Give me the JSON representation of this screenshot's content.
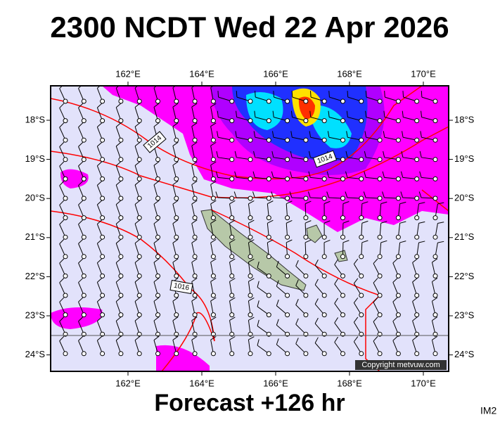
{
  "header": {
    "title": "2300 NCDT Wed 22 Apr 2026"
  },
  "map": {
    "lon_labels": [
      "162°E",
      "164°E",
      "166°E",
      "168°E",
      "170°E"
    ],
    "lat_labels": [
      "18°S",
      "19°S",
      "20°S",
      "21°S",
      "22°S",
      "23°S",
      "24°S"
    ],
    "isobar_labels": [
      "1014",
      "1014",
      "1016"
    ],
    "copyright": "Copyright metvuw.com"
  },
  "footer": {
    "forecast": "Forecast +126 hr",
    "id": "IM2"
  }
}
